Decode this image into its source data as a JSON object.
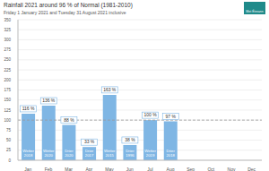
{
  "chart_data": {
    "type": "bar",
    "title": "Rainfall 2021 around 96 % of Normal (1981-2010)",
    "subtitle": "Friday 1 January 2021 and Tuesday 31 August 2021 inclusive",
    "logo_text": "Met Éireann",
    "categories": [
      "Jan",
      "Feb",
      "Mar",
      "Apr",
      "May",
      "Jun",
      "Jul",
      "Aug",
      "Sep",
      "Oct",
      "Nov",
      "Dec"
    ],
    "values": [
      116,
      136,
      88,
      33,
      163,
      38,
      100,
      97,
      null,
      null,
      null,
      null
    ],
    "value_labels": [
      "116 %",
      "136 %",
      "88 %",
      "33 %",
      "163 %",
      "38 %",
      "100 %",
      "97 %",
      null,
      null,
      null,
      null
    ],
    "annotations": [
      "Wetter 2018",
      "Wetter 2020",
      "Drier 2020",
      "Drier 2017",
      "Wetter 2015",
      "Drier 1996",
      "Wetter 2019",
      "Drier 2018",
      null,
      null,
      null,
      null
    ],
    "reference_line": 100,
    "color": "#7fb6e4",
    "ylim": [
      0,
      350
    ],
    "yticks": [
      0,
      25,
      50,
      75,
      100,
      125,
      150,
      175,
      200,
      225,
      250,
      275,
      300,
      325,
      350
    ],
    "grid": true,
    "data_labels": true
  }
}
